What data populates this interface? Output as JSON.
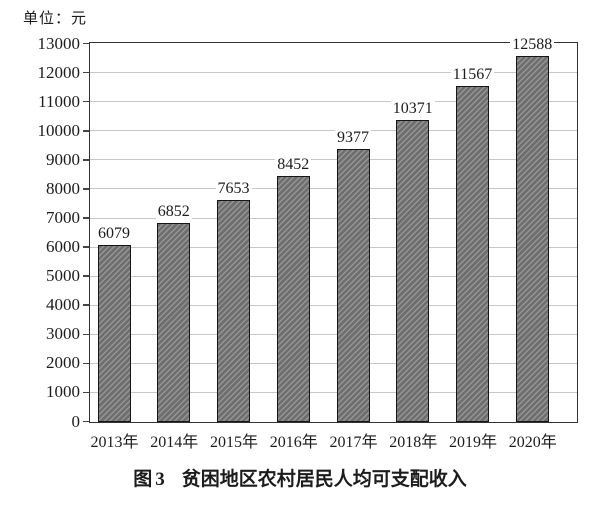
{
  "page": {
    "background": "#ffffff"
  },
  "chart_data": {
    "type": "bar",
    "unit_label": "单位：元",
    "caption": {
      "prefix": "图3",
      "title": "贫困地区农村居民人均可支配收入"
    },
    "categories": [
      "2013年",
      "2014年",
      "2015年",
      "2016年",
      "2017年",
      "2018年",
      "2019年",
      "2020年"
    ],
    "values": [
      6079,
      6852,
      7653,
      8452,
      9377,
      10371,
      11567,
      12588
    ],
    "ylim": [
      0,
      13000
    ],
    "ytick_step": 1000,
    "grid": true,
    "legend_position": "none",
    "bar_hatch_style": "forward-diagonal",
    "colors": {
      "bar_fill": "#6e6e6e",
      "bar_hatch": "#959595",
      "bar_border": "#161616",
      "gridline": "#c7c7c7",
      "axis": "#333333",
      "tick": "#444444",
      "text": "#1c1c1c"
    }
  }
}
